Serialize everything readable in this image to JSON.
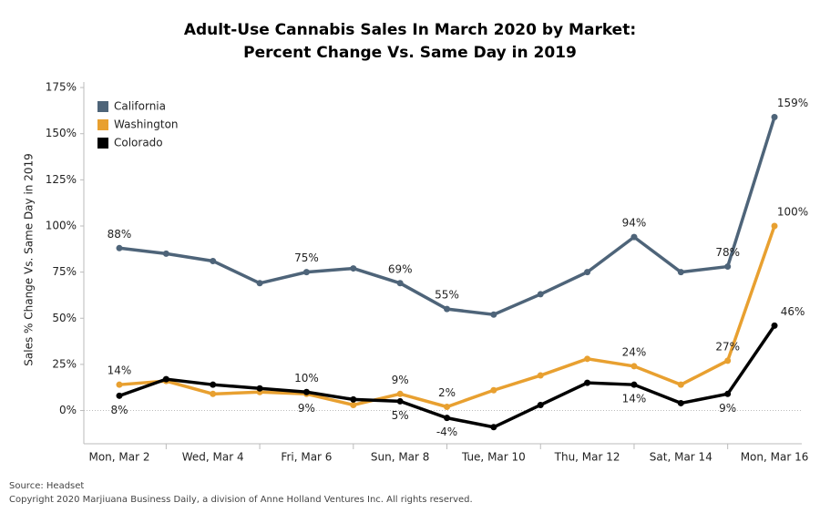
{
  "chart_data": {
    "type": "line",
    "title": "Adult-Use Cannabis Sales In March 2020 by Market:",
    "subtitle": "Percent Change Vs. Same Day in 2019",
    "y_label": "Sales % Change Vs. Same Day in 2019",
    "source": "Source: Headset",
    "copyright": "Copyright 2020 Marjiuana Business Daily, a division of Anne Holland Ventures Inc. All rights reserved.",
    "categories": [
      "Mon, Mar 2",
      null,
      "Wed, Mar 4",
      null,
      "Fri, Mar 6",
      null,
      "Sun, Mar 8",
      null,
      "Tue, Mar 10",
      null,
      "Thu, Mar 12",
      null,
      "Sat, Mar 14",
      null,
      "Mon, Mar 16"
    ],
    "series": [
      {
        "name": "California",
        "color": "#4e6479",
        "values": [
          88,
          85,
          81,
          69,
          75,
          77,
          69,
          55,
          52,
          63,
          75,
          94,
          75,
          78,
          159
        ],
        "value_labels": [
          "88%",
          null,
          null,
          null,
          "75%",
          null,
          "69%",
          "55%",
          null,
          null,
          null,
          "94%",
          null,
          "78%",
          "159%"
        ]
      },
      {
        "name": "Washington",
        "color": "#e8a030",
        "values": [
          14,
          16,
          9,
          10,
          9,
          3,
          9,
          2,
          11,
          19,
          28,
          24,
          14,
          27,
          100
        ],
        "value_labels": [
          "14%",
          null,
          null,
          null,
          "9%",
          null,
          "9%",
          "2%",
          null,
          null,
          null,
          "24%",
          null,
          "27%",
          "100%"
        ]
      },
      {
        "name": "Colorado",
        "color": "#000000",
        "values": [
          8,
          17,
          14,
          12,
          10,
          6,
          5,
          -4,
          -9,
          3,
          15,
          14,
          4,
          9,
          46
        ],
        "value_labels": [
          "8%",
          null,
          null,
          null,
          "10%",
          null,
          "5%",
          "-4%",
          null,
          null,
          null,
          "14%",
          null,
          "9%",
          "46%"
        ]
      }
    ],
    "ylim": [
      -18,
      178
    ],
    "yticks": [
      {
        "value": 0,
        "label": "0%"
      },
      {
        "value": 25,
        "label": "25%"
      },
      {
        "value": 50,
        "label": "50%"
      },
      {
        "value": 75,
        "label": "75%"
      },
      {
        "value": 100,
        "label": "100%"
      },
      {
        "value": 125,
        "label": "125%"
      },
      {
        "value": 150,
        "label": "150%"
      },
      {
        "value": 175,
        "label": "175%"
      }
    ],
    "legend": "top-left"
  }
}
